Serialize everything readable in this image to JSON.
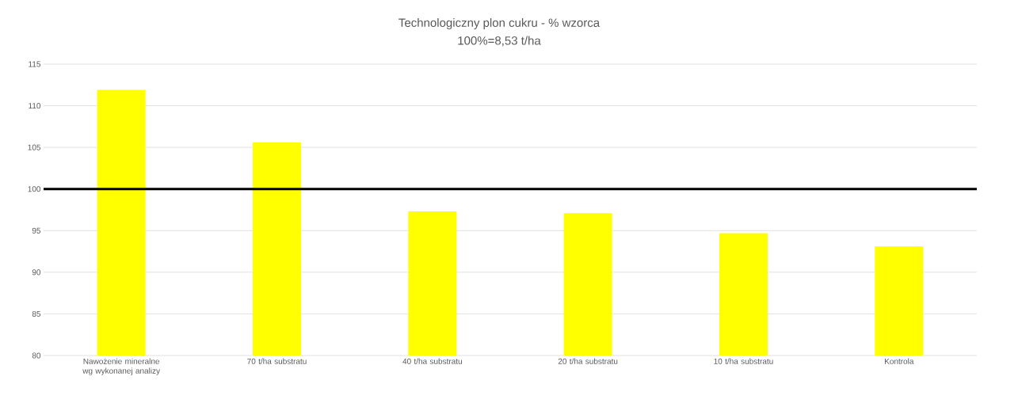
{
  "chart_data": {
    "type": "bar",
    "title": "Technologiczny plon cukru - % wzorca",
    "subtitle": "100%=8,53 t/ha",
    "categories": [
      "Nawożenie mineralne wg wykonanej analizy",
      "70 t/ha substratu",
      "40 t/ha substratu",
      "20 t/ha substratu",
      "10 t/ha substratu",
      "Kontrola"
    ],
    "values": [
      111.9,
      105.6,
      97.3,
      97.1,
      94.7,
      93.1
    ],
    "color": "#ffff00",
    "ylim": [
      80,
      115
    ],
    "yticks": [
      80,
      85,
      90,
      95,
      100,
      105,
      110,
      115
    ],
    "grid": "y",
    "ref_lines": [
      {
        "axis": "y",
        "value": 100,
        "color": "#000000"
      }
    ]
  }
}
